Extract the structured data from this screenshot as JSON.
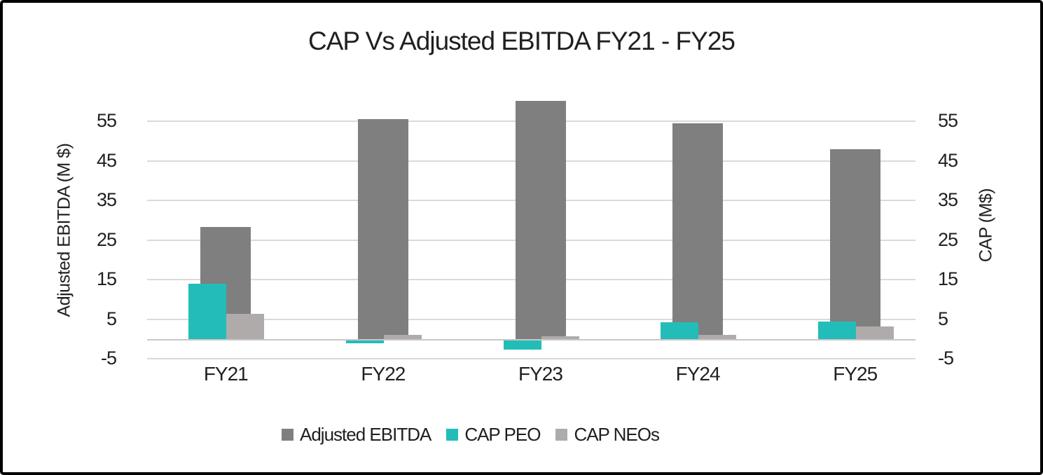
{
  "title": "CAP Vs Adjusted EBITDA FY21 - FY25",
  "left_axis": {
    "title": "Adjusted EBITDA (M $)"
  },
  "right_axis": {
    "title": "CAP (M$)"
  },
  "legend": {
    "items": [
      {
        "label": "Adjusted EBITDA",
        "color": "#7F7F7F"
      },
      {
        "label": "CAP PEO",
        "color": "#22BDB8"
      },
      {
        "label": "CAP NEOs",
        "color": "#AFABAA"
      }
    ]
  },
  "colors": {
    "adjusted_ebitda": "#7F7F7F",
    "cap_peo": "#22BDB8",
    "cap_neos": "#AFABAA",
    "gridline": "#DADADA",
    "axis_line": "#C9C7C7",
    "border": "#000000",
    "text": "#212121"
  },
  "chart_data": {
    "type": "bar",
    "title": "CAP Vs Adjusted EBITDA FY21 - FY25",
    "categories": [
      "FY21",
      "FY22",
      "FY23",
      "FY24",
      "FY25"
    ],
    "series": [
      {
        "name": "Adjusted EBITDA",
        "axis": "primary",
        "color": "#7F7F7F",
        "values": [
          28.4,
          55.5,
          60.2,
          54.6,
          47.9
        ]
      },
      {
        "name": "CAP PEO",
        "axis": "secondary",
        "color": "#22BDB8",
        "values": [
          14.0,
          -0.7,
          -2.3,
          4.3,
          4.4
        ]
      },
      {
        "name": "CAP NEOs",
        "axis": "secondary",
        "color": "#AFABAA",
        "values": [
          6.4,
          1.0,
          0.7,
          1.0,
          3.2
        ]
      }
    ],
    "xlabel": "",
    "ylabel_left": "Adjusted EBITDA (M $)",
    "ylabel_right": "CAP (M$)",
    "yticks": [
      -5,
      5,
      15,
      25,
      35,
      45,
      55
    ],
    "ylim": [
      -7,
      63
    ],
    "grid": true,
    "legend_position": "bottom"
  }
}
